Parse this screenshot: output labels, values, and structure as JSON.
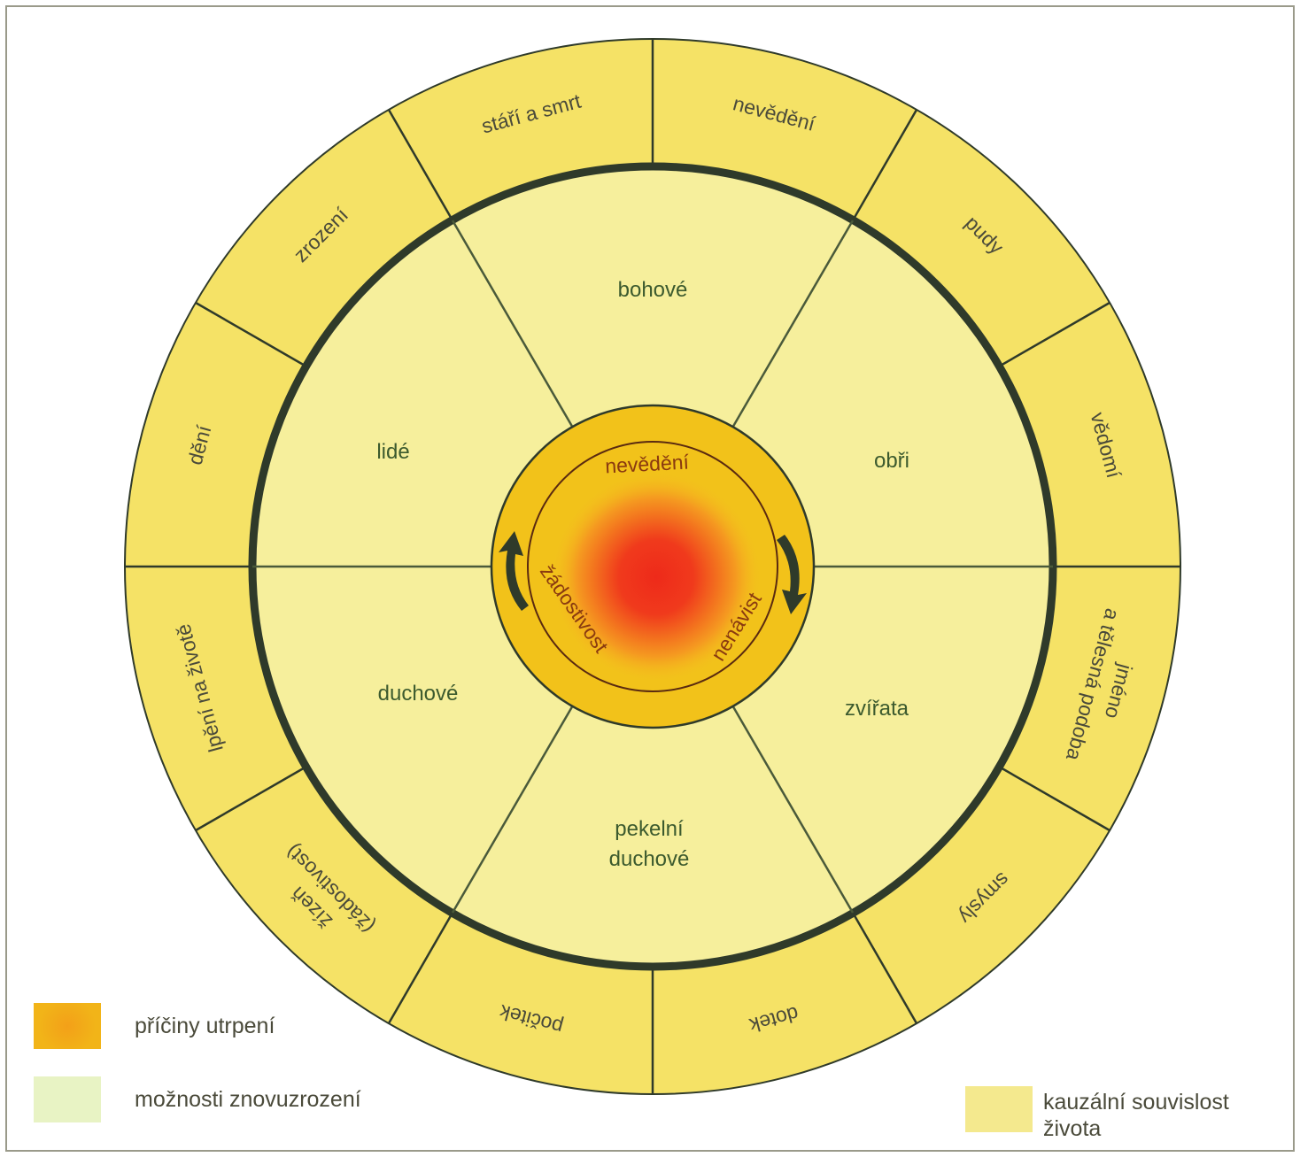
{
  "colors": {
    "outer_ring": "#f5e266",
    "realms": "#f6ef9c",
    "center_disc": "#f2c21a",
    "center_fire": "#ee2a1a",
    "ring_line": "#2f3a2a",
    "spoke_line": "#4a5a3a",
    "realm_text": "#3c5a2e",
    "center_text": "#8a3a10",
    "outer_text": "#4a4a3a"
  },
  "outer_ring": {
    "segments": [
      "nevědění",
      "pudy",
      "vědomí",
      "jméno|a tělesná podoba",
      "smysly",
      "dotek",
      "počitek",
      "žízeň|(žádostivost)",
      "lpění na životě",
      "dění",
      "zrození",
      "stáří a smrt"
    ]
  },
  "realms": {
    "gods": "bohové",
    "giants": "obři",
    "animals": "zvířata",
    "hell_spirits_line1": "pekelní",
    "hell_spirits_line2": "duchové",
    "spirits": "duchové",
    "humans": "lidé"
  },
  "center": {
    "ignorance": "nevědění",
    "hatred": "nenávist",
    "desire": "žádostivost"
  },
  "legend": {
    "causes": {
      "label": "příčiny utrpení",
      "color": "#f2b418"
    },
    "rebirth": {
      "label": "možnosti znovuzrození",
      "color": "#e8f3c4"
    },
    "causal": {
      "label": "kauzální souvislost života",
      "color": "#f4e98e"
    }
  }
}
